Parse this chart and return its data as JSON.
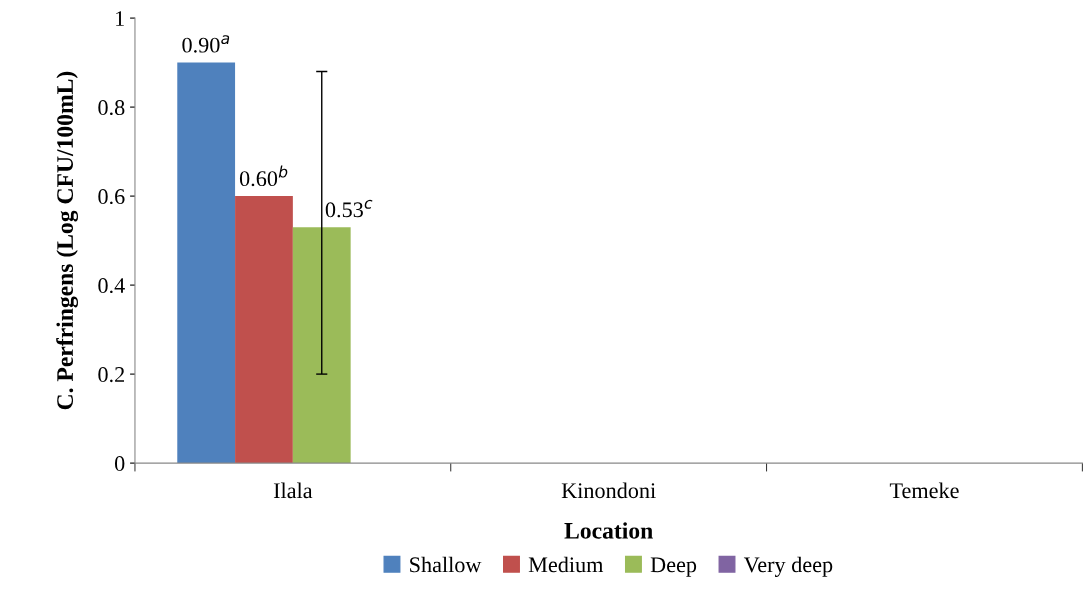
{
  "chart_data": {
    "type": "bar",
    "xlabel": "Location",
    "ylabel": "C. Perfringens (Log CFU/100mL)",
    "categories": [
      "Ilala",
      "Kinondoni",
      "Temeke"
    ],
    "series": [
      {
        "name": "Shallow",
        "color": "#4f81bd",
        "values": [
          0.9,
          0,
          0
        ],
        "value_labels": [
          "0.90$^{a}$",
          null,
          null
        ]
      },
      {
        "name": "Medium",
        "color": "#c0504d",
        "values": [
          0.6,
          0,
          0
        ],
        "value_labels": [
          "0.60$^{b}$",
          null,
          null
        ]
      },
      {
        "name": "Deep",
        "color": "#9bbb59",
        "values": [
          0.53,
          0,
          0
        ],
        "value_labels": [
          "0.53$^{c}$",
          null,
          null
        ],
        "errors": [
          [
            0.2,
            0.88
          ],
          null,
          null
        ]
      },
      {
        "name": "Very deep",
        "color": "#8064a2",
        "values": [
          0,
          0,
          0
        ]
      }
    ],
    "ylim": [
      0,
      1
    ],
    "yticks": [
      0,
      0.2,
      0.4,
      0.6,
      0.8,
      1
    ],
    "grid": false,
    "legend": "bottom"
  }
}
